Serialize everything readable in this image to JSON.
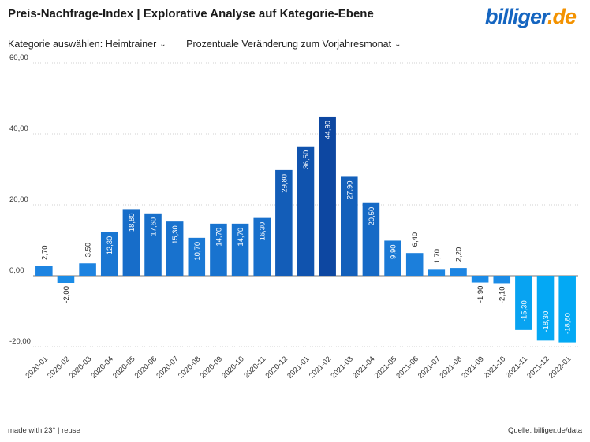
{
  "header": {
    "title": "Preis-Nachfrage-Index | Explorative Analyse auf Kategorie-Ebene",
    "logo_text": "billiger",
    "logo_domain": ".de"
  },
  "controls": {
    "category_label": "Kategorie auswählen: Heimtrainer",
    "metric_label": "Prozentuale Veränderung zum Vorjahresmonat"
  },
  "footer": {
    "made_with": "made with 23°",
    "separator": " | ",
    "reuse": "reuse",
    "source": "Quelle: billiger.de/data"
  },
  "colors": {
    "accent": "#1565c0",
    "logo_domain": "#f39200"
  },
  "chart_data": {
    "type": "bar",
    "categories": [
      "2020-01",
      "2020-02",
      "2020-03",
      "2020-04",
      "2020-05",
      "2020-06",
      "2020-07",
      "2020-08",
      "2020-09",
      "2020-10",
      "2020-11",
      "2020-12",
      "2021-01",
      "2021-02",
      "2021-03",
      "2021-04",
      "2021-05",
      "2021-06",
      "2021-07",
      "2021-08",
      "2021-09",
      "2021-10",
      "2021-11",
      "2021-12",
      "2022-01"
    ],
    "values": [
      2.7,
      -2.0,
      3.5,
      12.3,
      18.8,
      17.6,
      15.3,
      10.7,
      14.7,
      14.7,
      16.3,
      29.8,
      36.5,
      44.9,
      27.9,
      20.5,
      9.9,
      6.4,
      1.7,
      2.2,
      -1.9,
      -2.1,
      -15.3,
      -18.3,
      -18.8
    ],
    "value_labels": [
      "2,70",
      "-2,00",
      "3,50",
      "12,30",
      "18,80",
      "17,60",
      "15,30",
      "10,70",
      "14,70",
      "14,70",
      "16,30",
      "29,80",
      "36,50",
      "44,90",
      "27,90",
      "20,50",
      "9,90",
      "6,40",
      "1,70",
      "2,20",
      "-1,90",
      "-2,10",
      "-15,30",
      "-18,30",
      "-18,80"
    ],
    "y_ticks": [
      "60,00",
      "40,00",
      "20,00",
      "0,00",
      "-20,00"
    ],
    "y_tick_values": [
      60,
      40,
      20,
      0,
      -20
    ],
    "ylim": [
      -20,
      60
    ],
    "grid": true,
    "gradient_colors": [
      "#1e88e5",
      "#0d47a1",
      "#03a9f4"
    ]
  }
}
